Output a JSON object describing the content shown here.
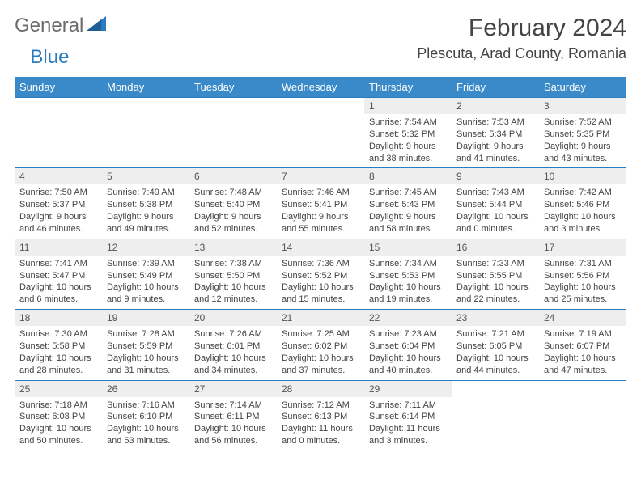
{
  "brand": {
    "part1": "General",
    "part2": "Blue"
  },
  "colors": {
    "header_bg": "#3a8ac9",
    "border": "#2b7bbf",
    "daynum_bg": "#eeeeee",
    "text": "#444444",
    "brand_gray": "#6b6b6b",
    "brand_blue": "#2b7bbf",
    "page_bg": "#ffffff"
  },
  "fonts": {
    "title_size": 30,
    "location_size": 18,
    "weekday_size": 13,
    "daynum_size": 12,
    "body_size": 11
  },
  "title": "February 2024",
  "location": "Plescuta, Arad County, Romania",
  "weekdays": [
    "Sunday",
    "Monday",
    "Tuesday",
    "Wednesday",
    "Thursday",
    "Friday",
    "Saturday"
  ],
  "weeks": [
    [
      null,
      null,
      null,
      null,
      {
        "n": "1",
        "sunrise": "7:54 AM",
        "sunset": "5:32 PM",
        "daylight": "9 hours and 38 minutes."
      },
      {
        "n": "2",
        "sunrise": "7:53 AM",
        "sunset": "5:34 PM",
        "daylight": "9 hours and 41 minutes."
      },
      {
        "n": "3",
        "sunrise": "7:52 AM",
        "sunset": "5:35 PM",
        "daylight": "9 hours and 43 minutes."
      }
    ],
    [
      {
        "n": "4",
        "sunrise": "7:50 AM",
        "sunset": "5:37 PM",
        "daylight": "9 hours and 46 minutes."
      },
      {
        "n": "5",
        "sunrise": "7:49 AM",
        "sunset": "5:38 PM",
        "daylight": "9 hours and 49 minutes."
      },
      {
        "n": "6",
        "sunrise": "7:48 AM",
        "sunset": "5:40 PM",
        "daylight": "9 hours and 52 minutes."
      },
      {
        "n": "7",
        "sunrise": "7:46 AM",
        "sunset": "5:41 PM",
        "daylight": "9 hours and 55 minutes."
      },
      {
        "n": "8",
        "sunrise": "7:45 AM",
        "sunset": "5:43 PM",
        "daylight": "9 hours and 58 minutes."
      },
      {
        "n": "9",
        "sunrise": "7:43 AM",
        "sunset": "5:44 PM",
        "daylight": "10 hours and 0 minutes."
      },
      {
        "n": "10",
        "sunrise": "7:42 AM",
        "sunset": "5:46 PM",
        "daylight": "10 hours and 3 minutes."
      }
    ],
    [
      {
        "n": "11",
        "sunrise": "7:41 AM",
        "sunset": "5:47 PM",
        "daylight": "10 hours and 6 minutes."
      },
      {
        "n": "12",
        "sunrise": "7:39 AM",
        "sunset": "5:49 PM",
        "daylight": "10 hours and 9 minutes."
      },
      {
        "n": "13",
        "sunrise": "7:38 AM",
        "sunset": "5:50 PM",
        "daylight": "10 hours and 12 minutes."
      },
      {
        "n": "14",
        "sunrise": "7:36 AM",
        "sunset": "5:52 PM",
        "daylight": "10 hours and 15 minutes."
      },
      {
        "n": "15",
        "sunrise": "7:34 AM",
        "sunset": "5:53 PM",
        "daylight": "10 hours and 19 minutes."
      },
      {
        "n": "16",
        "sunrise": "7:33 AM",
        "sunset": "5:55 PM",
        "daylight": "10 hours and 22 minutes."
      },
      {
        "n": "17",
        "sunrise": "7:31 AM",
        "sunset": "5:56 PM",
        "daylight": "10 hours and 25 minutes."
      }
    ],
    [
      {
        "n": "18",
        "sunrise": "7:30 AM",
        "sunset": "5:58 PM",
        "daylight": "10 hours and 28 minutes."
      },
      {
        "n": "19",
        "sunrise": "7:28 AM",
        "sunset": "5:59 PM",
        "daylight": "10 hours and 31 minutes."
      },
      {
        "n": "20",
        "sunrise": "7:26 AM",
        "sunset": "6:01 PM",
        "daylight": "10 hours and 34 minutes."
      },
      {
        "n": "21",
        "sunrise": "7:25 AM",
        "sunset": "6:02 PM",
        "daylight": "10 hours and 37 minutes."
      },
      {
        "n": "22",
        "sunrise": "7:23 AM",
        "sunset": "6:04 PM",
        "daylight": "10 hours and 40 minutes."
      },
      {
        "n": "23",
        "sunrise": "7:21 AM",
        "sunset": "6:05 PM",
        "daylight": "10 hours and 44 minutes."
      },
      {
        "n": "24",
        "sunrise": "7:19 AM",
        "sunset": "6:07 PM",
        "daylight": "10 hours and 47 minutes."
      }
    ],
    [
      {
        "n": "25",
        "sunrise": "7:18 AM",
        "sunset": "6:08 PM",
        "daylight": "10 hours and 50 minutes."
      },
      {
        "n": "26",
        "sunrise": "7:16 AM",
        "sunset": "6:10 PM",
        "daylight": "10 hours and 53 minutes."
      },
      {
        "n": "27",
        "sunrise": "7:14 AM",
        "sunset": "6:11 PM",
        "daylight": "10 hours and 56 minutes."
      },
      {
        "n": "28",
        "sunrise": "7:12 AM",
        "sunset": "6:13 PM",
        "daylight": "11 hours and 0 minutes."
      },
      {
        "n": "29",
        "sunrise": "7:11 AM",
        "sunset": "6:14 PM",
        "daylight": "11 hours and 3 minutes."
      },
      null,
      null
    ]
  ],
  "labels": {
    "sunrise": "Sunrise: ",
    "sunset": "Sunset: ",
    "daylight": "Daylight: "
  }
}
